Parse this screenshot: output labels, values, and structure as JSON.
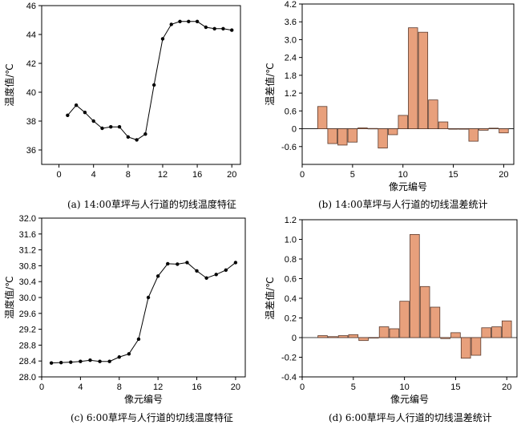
{
  "chart_data": [
    {
      "type": "line",
      "caption": "(a) 14:00草坪与人行道的切线温度特征",
      "xlabel": "",
      "ylabel": "温度值/℃",
      "xlim": [
        -2,
        21
      ],
      "ylim": [
        35,
        46
      ],
      "xticks": [
        0,
        4,
        8,
        12,
        16,
        20
      ],
      "yticks": [
        36,
        38,
        40,
        42,
        44,
        46
      ],
      "series": [
        {
          "x": [
            1,
            2,
            3,
            4,
            5,
            6,
            7,
            8,
            9,
            10,
            11,
            12,
            13,
            14,
            15,
            16,
            17,
            18,
            19,
            20
          ],
          "values": [
            38.4,
            39.1,
            38.6,
            38.0,
            37.5,
            37.6,
            37.6,
            36.9,
            36.7,
            37.1,
            40.5,
            43.7,
            44.7,
            44.9,
            44.9,
            44.9,
            44.5,
            44.4,
            44.4,
            44.3
          ]
        }
      ]
    },
    {
      "type": "bar",
      "caption": "(b) 14:00草坪与人行道的切线温差统计",
      "xlabel": "像元编号",
      "ylabel": "温差值/℃",
      "xlim": [
        0,
        21
      ],
      "ylim": [
        -1.2,
        4.2
      ],
      "xticks": [
        0,
        5,
        10,
        15,
        20
      ],
      "yticks": [
        -0.6,
        0,
        0.6,
        1.2,
        1.8,
        2.4,
        3.0,
        3.6,
        4.2
      ],
      "ytick_labels": [
        "-0.6",
        "0",
        "0.6",
        "1.2",
        "1.8",
        "2.4",
        "3.0",
        "3.6",
        "4.2"
      ],
      "series": [
        {
          "x": [
            2,
            3,
            4,
            5,
            6,
            7,
            8,
            9,
            10,
            11,
            12,
            13,
            14,
            15,
            16,
            17,
            18,
            19,
            20
          ],
          "values": [
            0.75,
            -0.5,
            -0.55,
            -0.45,
            0.03,
            0.01,
            -0.65,
            -0.2,
            0.45,
            3.4,
            3.25,
            0.97,
            0.23,
            -0.01,
            -0.01,
            -0.42,
            -0.05,
            0.02,
            -0.14
          ]
        }
      ]
    },
    {
      "type": "line",
      "caption": "(c) 6:00草坪与人行道的切线温度特征",
      "xlabel": "像元编号",
      "ylabel": "温度值/℃",
      "xlim": [
        0,
        21
      ],
      "ylim": [
        28.0,
        32.0
      ],
      "xticks": [
        0,
        4,
        8,
        12,
        16,
        20
      ],
      "yticks": [
        28.0,
        28.4,
        28.8,
        29.2,
        29.6,
        30.0,
        30.4,
        30.8,
        31.2,
        31.6,
        32.0
      ],
      "ytick_labels": [
        "28.0",
        "28.4",
        "28.8",
        "29.2",
        "29.6",
        "30.0",
        "30.4",
        "30.8",
        "31.2",
        "31.6",
        "32.0"
      ],
      "series": [
        {
          "x": [
            1,
            2,
            3,
            4,
            5,
            6,
            7,
            8,
            9,
            10,
            11,
            12,
            13,
            14,
            15,
            16,
            17,
            18,
            19,
            20
          ],
          "values": [
            28.35,
            28.36,
            28.37,
            28.39,
            28.42,
            28.39,
            28.39,
            28.5,
            28.58,
            28.95,
            30.0,
            30.54,
            30.85,
            30.84,
            30.88,
            30.67,
            30.49,
            30.58,
            30.69,
            30.88
          ]
        }
      ]
    },
    {
      "type": "bar",
      "caption": "(d) 6:00草坪与人行道的切线温差统计",
      "xlabel": "像元编号",
      "ylabel": "温差值/℃",
      "xlim": [
        0,
        21
      ],
      "ylim": [
        -0.4,
        1.2
      ],
      "xticks": [
        0,
        5,
        10,
        15,
        20
      ],
      "yticks": [
        -0.4,
        -0.2,
        0,
        0.2,
        0.4,
        0.6,
        0.8,
        1.0,
        1.2
      ],
      "ytick_labels": [
        "-0.4",
        "-0.2",
        "0",
        "0.2",
        "0.4",
        "0.6",
        "0.8",
        "1.0",
        "1.2"
      ],
      "series": [
        {
          "x": [
            2,
            3,
            4,
            5,
            6,
            7,
            8,
            9,
            10,
            11,
            12,
            13,
            14,
            15,
            16,
            17,
            18,
            19,
            20
          ],
          "values": [
            0.02,
            0.01,
            0.02,
            0.03,
            -0.03,
            0.0,
            0.11,
            0.09,
            0.37,
            1.05,
            0.52,
            0.31,
            -0.01,
            0.05,
            -0.21,
            -0.18,
            0.1,
            0.11,
            0.17
          ]
        }
      ]
    }
  ],
  "colors": {
    "bar_fill": "#e8a07c",
    "bar_stroke": "#5a3a2c",
    "line": "#000000"
  }
}
